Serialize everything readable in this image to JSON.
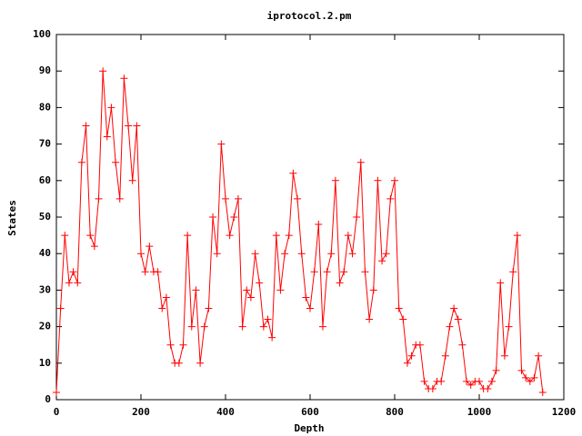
{
  "chart_data": {
    "type": "line",
    "title": "iprotocol.2.pm",
    "x_label": "Depth",
    "y_label": "States",
    "x": [
      0,
      10,
      20,
      30,
      40,
      50,
      60,
      70,
      80,
      90,
      100,
      110,
      120,
      130,
      140,
      150,
      160,
      170,
      180,
      190,
      200,
      210,
      220,
      230,
      240,
      250,
      260,
      270,
      280,
      290,
      300,
      310,
      320,
      330,
      340,
      350,
      360,
      370,
      380,
      390,
      400,
      410,
      420,
      430,
      440,
      450,
      460,
      470,
      480,
      490,
      500,
      510,
      520,
      530,
      540,
      550,
      560,
      570,
      580,
      590,
      600,
      610,
      620,
      630,
      640,
      650,
      660,
      670,
      680,
      690,
      700,
      710,
      720,
      730,
      740,
      750,
      760,
      770,
      780,
      790,
      800,
      810,
      820,
      830,
      840,
      850,
      860,
      870,
      880,
      890,
      900,
      910,
      920,
      930,
      940,
      950,
      960,
      970,
      980,
      990,
      1000,
      1010,
      1020,
      1030,
      1040,
      1050,
      1060,
      1070,
      1080,
      1090,
      1100,
      1110,
      1120,
      1130,
      1140,
      1150
    ],
    "series": [
      {
        "name": "iprotocol.2.pm",
        "color": "#ff0000",
        "values": [
          2,
          25,
          45,
          32,
          35,
          32,
          65,
          75,
          45,
          42,
          55,
          90,
          72,
          80,
          65,
          55,
          88,
          75,
          60,
          75,
          40,
          35,
          42,
          35,
          35,
          25,
          28,
          15,
          10,
          10,
          15,
          45,
          20,
          30,
          10,
          20,
          25,
          50,
          40,
          70,
          55,
          45,
          50,
          55,
          20,
          30,
          28,
          40,
          32,
          20,
          22,
          17,
          45,
          30,
          40,
          45,
          62,
          55,
          40,
          28,
          25,
          35,
          48,
          20,
          35,
          40,
          60,
          32,
          35,
          45,
          40,
          50,
          65,
          35,
          22,
          30,
          60,
          38,
          40,
          55,
          60,
          25,
          22,
          10,
          12,
          15,
          15,
          5,
          3,
          3,
          5,
          5,
          12,
          20,
          25,
          22,
          15,
          5,
          4,
          5,
          5,
          3,
          3,
          5,
          8,
          32,
          12,
          20,
          35,
          45,
          8,
          6,
          5,
          6,
          12,
          2
        ]
      }
    ],
    "xlim": [
      0,
      1200
    ],
    "xticks": [
      0,
      200,
      400,
      600,
      800,
      1000,
      1200
    ],
    "ylim": [
      0,
      100
    ],
    "yticks": [
      0,
      10,
      20,
      30,
      40,
      50,
      60,
      70,
      80,
      90,
      100
    ]
  }
}
